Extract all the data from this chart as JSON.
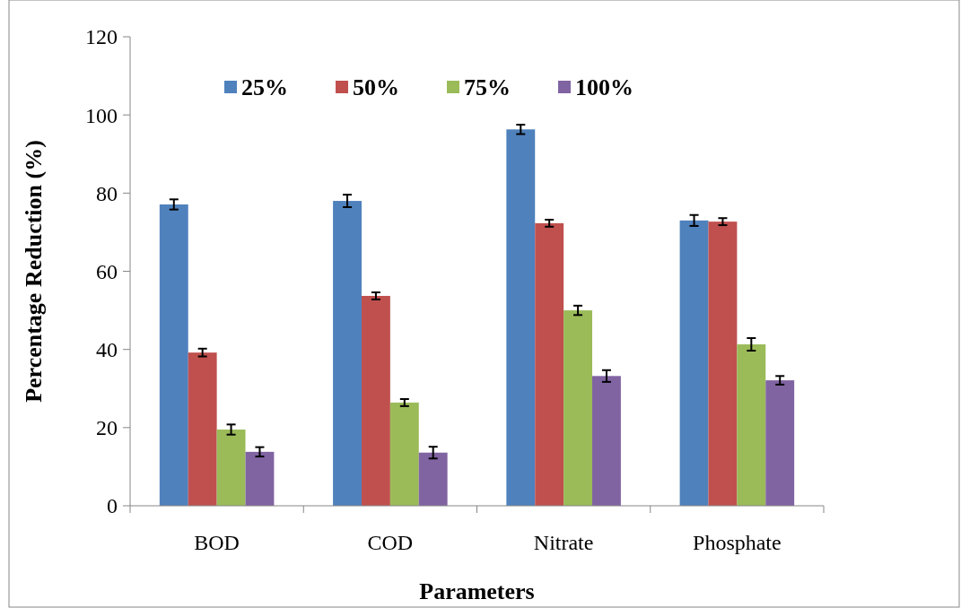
{
  "chart_data": {
    "type": "bar",
    "xlabel": "Parameters",
    "ylabel": "Percentage Reduction (%)",
    "categories": [
      "BOD",
      "COD",
      "Nitrate",
      "Phosphate"
    ],
    "ylim": [
      0,
      120
    ],
    "yticks": [
      0,
      20,
      40,
      60,
      80,
      100,
      120
    ],
    "legend": "top",
    "grid": false,
    "series": [
      {
        "name": "25%",
        "color": "#4f81bd",
        "values": [
          77.1,
          78,
          96.3,
          73
        ],
        "errors": [
          1.3,
          1.6,
          1.2,
          1.4
        ]
      },
      {
        "name": "50%",
        "color": "#c0504d",
        "values": [
          39.2,
          53.7,
          72.3,
          72.7
        ],
        "errors": [
          1,
          0.9,
          0.9,
          0.9
        ]
      },
      {
        "name": "75%",
        "color": "#9bbb59",
        "values": [
          19.5,
          26.4,
          50,
          41.3
        ],
        "errors": [
          1.3,
          0.9,
          1.2,
          1.6
        ]
      },
      {
        "name": "100%",
        "color": "#8064a2",
        "values": [
          13.8,
          13.6,
          33.2,
          32.1
        ],
        "errors": [
          1.2,
          1.5,
          1.5,
          1.1
        ]
      }
    ]
  }
}
